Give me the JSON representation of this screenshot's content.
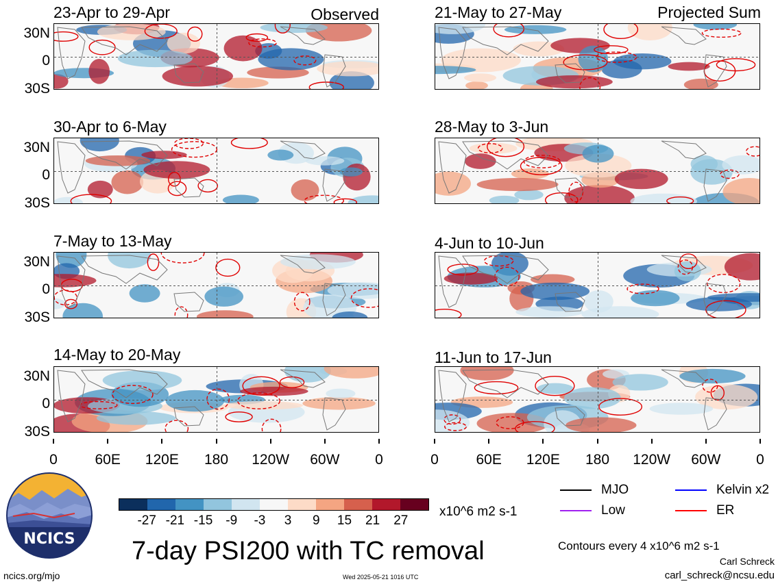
{
  "panels": [
    {
      "title": "23-Apr to 29-Apr",
      "tag": "Observed"
    },
    {
      "title": "21-May to 27-May",
      "tag": "Projected Sum"
    },
    {
      "title": "30-Apr to 6-May",
      "tag": ""
    },
    {
      "title": "28-May to 3-Jun",
      "tag": ""
    },
    {
      "title": "7-May to 13-May",
      "tag": ""
    },
    {
      "title": "4-Jun to 10-Jun",
      "tag": ""
    },
    {
      "title": "14-May to 20-May",
      "tag": ""
    },
    {
      "title": "11-Jun to 17-Jun",
      "tag": ""
    }
  ],
  "lat_labels": [
    "30N",
    "0",
    "30S"
  ],
  "lon_labels": [
    "0",
    "60E",
    "120E",
    "180",
    "120W",
    "60W",
    "0"
  ],
  "colorbar": {
    "colors": [
      "#0b2f5c",
      "#2166ac",
      "#4393c3",
      "#92c5de",
      "#d1e5f0",
      "#f7f7f7",
      "#fddbc7",
      "#f4a582",
      "#d6604d",
      "#b2182b",
      "#67001f"
    ],
    "labels": [
      "-27",
      "-21",
      "-15",
      "-9",
      "-3",
      "3",
      "9",
      "15",
      "21",
      "27"
    ],
    "units": "x10^6 m2 s-1"
  },
  "legend": [
    {
      "label": "MJO",
      "color": "#000000"
    },
    {
      "label": "Kelvin x2",
      "color": "#0000ff"
    },
    {
      "label": "Low",
      "color": "#a020f0"
    },
    {
      "label": "ER",
      "color": "#ff0000"
    }
  ],
  "title": "7-day PSI200 with TC removal",
  "contour_note": "Contours every 4 x10^6 m2 s-1",
  "author": "Carl Schreck",
  "email": "carl_schreck@ncsu.edu",
  "site": "ncics.org/mjo",
  "timestamp": "Wed 2025-05-21 1016 UTC",
  "logo_text": "NCICS"
}
